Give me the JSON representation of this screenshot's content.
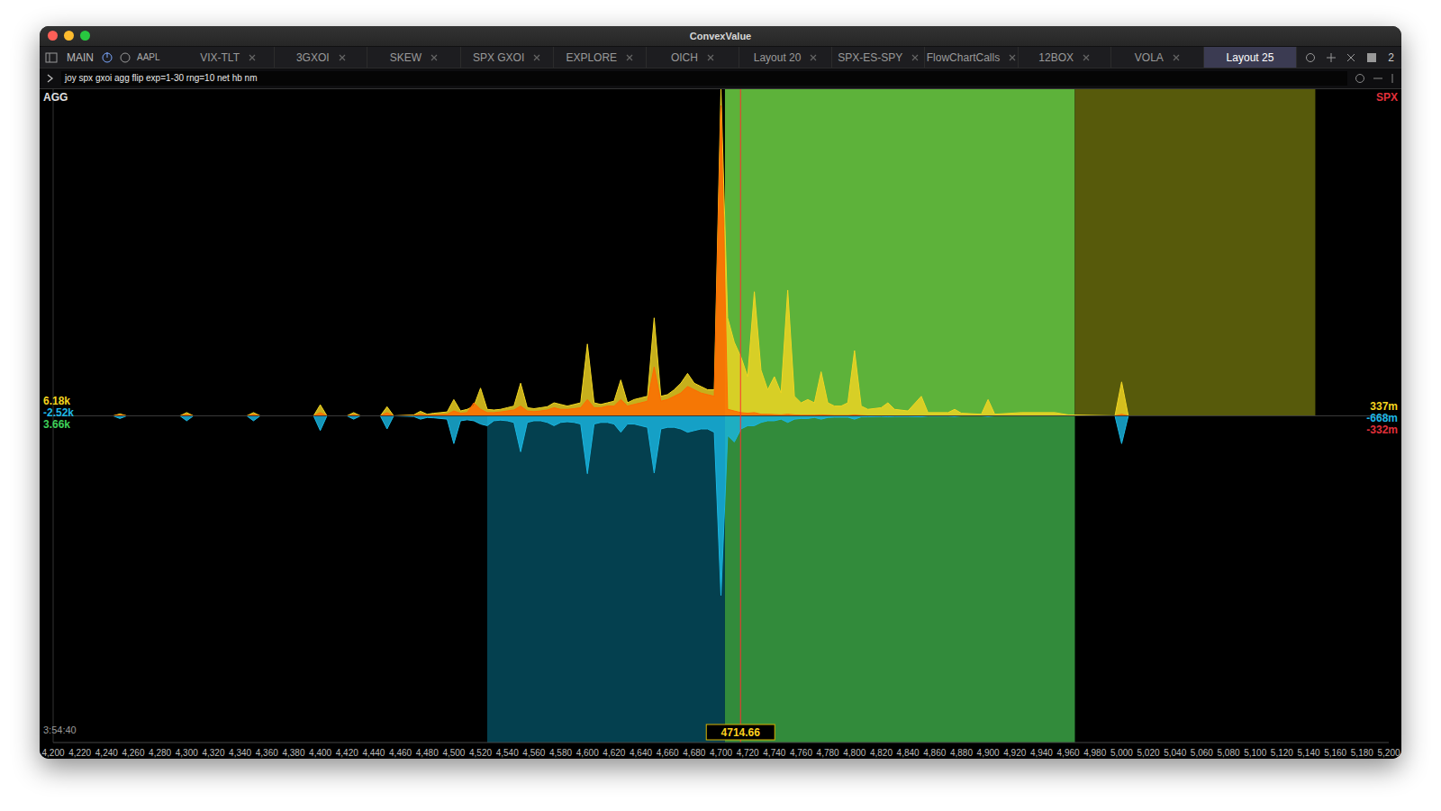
{
  "window": {
    "title": "ConvexValue"
  },
  "toolbar": {
    "items": [
      "MAIN",
      "AAPL"
    ],
    "tabs": [
      "VIX-TLT",
      "3GXOI",
      "SKEW",
      "SPX GXOI",
      "EXPLORE",
      "OICH",
      "Layout 20",
      "SPX-ES-SPY",
      "FlowChartCalls",
      "12BOX",
      "VOLA",
      "Layout 25"
    ],
    "active_tab": "Layout 25",
    "badge": "2"
  },
  "command": "joy spx gxoi agg flip exp=1-30 rng=10 net hb nm",
  "chart_data": {
    "type": "area",
    "title": "AGG",
    "subtitle": "SPX",
    "time": "3:54:40",
    "spot": 4714.66,
    "spot_color": "#ff3030",
    "left_stats": [
      {
        "label": "6.18k",
        "color": "#f5d51f"
      },
      {
        "label": "-2.52k",
        "color": "#1fb8e6"
      },
      {
        "label": "3.66k",
        "color": "#3fd15a"
      }
    ],
    "right_stats": [
      {
        "label": "337m",
        "color": "#f5d51f"
      },
      {
        "label": "-668m",
        "color": "#1fb8e6"
      },
      {
        "label": "-332m",
        "color": "#e0303a"
      }
    ],
    "grid": false,
    "stacked": false,
    "tick_labels": "x",
    "xlim": [
      4200,
      5200
    ],
    "ylim": [
      -100,
      100
    ],
    "xticks": [
      {
        "value": 4200,
        "label": "4,200"
      },
      {
        "value": 4220,
        "label": "4,220"
      },
      {
        "value": 4240,
        "label": "4,240"
      },
      {
        "value": 4260,
        "label": "4,260"
      },
      {
        "value": 4280,
        "label": "4,280"
      },
      {
        "value": 4300,
        "label": "4,300"
      },
      {
        "value": 4320,
        "label": "4,320"
      },
      {
        "value": 4340,
        "label": "4,340"
      },
      {
        "value": 4360,
        "label": "4,360"
      },
      {
        "value": 4380,
        "label": "4,380"
      },
      {
        "value": 4400,
        "label": "4,400"
      },
      {
        "value": 4420,
        "label": "4,420"
      },
      {
        "value": 4440,
        "label": "4,440"
      },
      {
        "value": 4460,
        "label": "4,460"
      },
      {
        "value": 4480,
        "label": "4,480"
      },
      {
        "value": 4500,
        "label": "4,500"
      },
      {
        "value": 4520,
        "label": "4,520"
      },
      {
        "value": 4540,
        "label": "4,540"
      },
      {
        "value": 4560,
        "label": "4,560"
      },
      {
        "value": 4580,
        "label": "4,580"
      },
      {
        "value": 4600,
        "label": "4,600"
      },
      {
        "value": 4620,
        "label": "4,620"
      },
      {
        "value": 4640,
        "label": "4,640"
      },
      {
        "value": 4660,
        "label": "4,660"
      },
      {
        "value": 4680,
        "label": "4,680"
      },
      {
        "value": 4700,
        "label": "4,700"
      },
      {
        "value": 4720,
        "label": "4,720"
      },
      {
        "value": 4740,
        "label": "4,740"
      },
      {
        "value": 4760,
        "label": "4,760"
      },
      {
        "value": 4780,
        "label": "4,780"
      },
      {
        "value": 4800,
        "label": "4,800"
      },
      {
        "value": 4820,
        "label": "4,820"
      },
      {
        "value": 4840,
        "label": "4,840"
      },
      {
        "value": 4860,
        "label": "4,860"
      },
      {
        "value": 4880,
        "label": "4,880"
      },
      {
        "value": 4900,
        "label": "4,900"
      },
      {
        "value": 4920,
        "label": "4,920"
      },
      {
        "value": 4940,
        "label": "4,940"
      },
      {
        "value": 4960,
        "label": "4,960"
      },
      {
        "value": 4980,
        "label": "4,980"
      },
      {
        "value": 5000,
        "label": "5,000"
      },
      {
        "value": 5020,
        "label": "5,020"
      },
      {
        "value": 5040,
        "label": "5,040"
      },
      {
        "value": 5060,
        "label": "5,060"
      },
      {
        "value": 5080,
        "label": "5,080"
      },
      {
        "value": 5100,
        "label": "5,100"
      },
      {
        "value": 5120,
        "label": "5,120"
      },
      {
        "value": 5140,
        "label": "5,140"
      },
      {
        "value": 5160,
        "label": "5,160"
      },
      {
        "value": 5180,
        "label": "5,180"
      },
      {
        "value": 5200,
        "label": "5,200"
      }
    ],
    "zones": [
      {
        "x1": 4525,
        "x2": 4703,
        "y1": -100,
        "y2": 0,
        "color": "#04404f"
      },
      {
        "x1": 4703,
        "x2": 4965,
        "y1": 0,
        "y2": 100,
        "color": "#5db23a"
      },
      {
        "x1": 4703,
        "x2": 4965,
        "y1": -100,
        "y2": 0,
        "color": "#328b3b"
      },
      {
        "x1": 4965,
        "x2": 5145,
        "y1": 0,
        "y2": 100,
        "color": "#575a0b"
      }
    ],
    "x": [
      4210,
      4245,
      4250,
      4255,
      4295,
      4300,
      4305,
      4345,
      4350,
      4355,
      4395,
      4400,
      4405,
      4420,
      4425,
      4430,
      4445,
      4450,
      4455,
      4470,
      4475,
      4480,
      4485,
      4490,
      4495,
      4500,
      4505,
      4510,
      4515,
      4520,
      4525,
      4530,
      4535,
      4540,
      4545,
      4550,
      4555,
      4560,
      4565,
      4570,
      4575,
      4580,
      4585,
      4590,
      4595,
      4600,
      4605,
      4610,
      4615,
      4620,
      4625,
      4630,
      4635,
      4640,
      4645,
      4650,
      4655,
      4660,
      4665,
      4670,
      4675,
      4680,
      4685,
      4690,
      4695,
      4700,
      4705,
      4710,
      4715,
      4720,
      4725,
      4730,
      4735,
      4740,
      4745,
      4750,
      4755,
      4760,
      4765,
      4770,
      4775,
      4780,
      4785,
      4790,
      4795,
      4800,
      4805,
      4810,
      4820,
      4825,
      4830,
      4840,
      4850,
      4855,
      4870,
      4875,
      4880,
      4895,
      4900,
      4905,
      4925,
      4950,
      4960,
      4995,
      5000,
      5005,
      5190
    ],
    "series": [
      {
        "color": "#f2d622",
        "values": [
          0,
          0,
          0.6,
          0,
          0,
          1,
          0,
          0,
          1,
          0,
          0,
          3.4,
          0,
          0,
          1,
          0,
          0,
          2.8,
          0,
          0.3,
          1.4,
          0.5,
          0.8,
          1,
          1.2,
          5,
          1.5,
          2,
          3,
          8.5,
          2,
          1.8,
          2,
          2.5,
          3,
          10,
          2.5,
          2.2,
          2.5,
          2.8,
          4,
          3.5,
          3,
          3.5,
          4,
          22,
          4,
          3.5,
          4,
          4.5,
          11,
          4,
          5,
          5.5,
          6,
          30,
          6,
          6.5,
          8,
          10,
          13,
          10,
          9,
          8,
          8,
          100,
          30,
          22.5,
          18,
          12,
          38,
          14,
          8,
          12,
          7,
          38.5,
          6,
          4,
          5,
          4,
          13.5,
          4,
          3,
          3,
          4,
          20,
          3,
          2,
          2.5,
          4,
          2,
          1.5,
          6,
          1,
          1,
          2,
          0.8,
          0.5,
          5,
          0.5,
          1,
          1,
          0.3,
          0,
          10.4,
          0,
          0
        ]
      },
      {
        "color": "#ff6a00",
        "values": [
          0,
          0,
          0.3,
          0,
          0,
          0.4,
          0,
          0,
          0.4,
          0,
          0,
          1,
          0,
          0,
          0.3,
          0,
          0,
          1,
          0,
          0.1,
          0.5,
          0.2,
          0.3,
          0.4,
          0.5,
          1.5,
          0.8,
          1,
          4,
          2,
          1,
          1,
          1.2,
          1.5,
          1.8,
          3,
          1.5,
          1.3,
          1.5,
          1.8,
          2.5,
          2,
          2,
          2.2,
          2.5,
          5,
          2.5,
          2.5,
          3,
          3,
          5,
          3,
          3.5,
          4,
          4.5,
          15,
          4.5,
          5,
          6,
          7,
          9,
          8,
          7,
          6.5,
          6,
          95,
          2,
          1.5,
          1,
          0.8,
          1,
          0.5,
          0.5,
          0.4,
          0.3,
          0.5,
          0.3,
          0.2,
          0.2,
          0.2,
          0.3,
          0.2,
          0.1,
          0.1,
          0.1,
          0.3,
          0.1,
          0,
          0,
          0,
          0,
          0,
          0,
          0,
          0,
          0,
          0,
          0,
          0,
          0,
          0,
          0,
          0,
          0,
          0.5,
          0,
          0
        ]
      },
      {
        "color": "#1ab6e0",
        "values": [
          0,
          0,
          -0.8,
          0,
          0,
          -1.5,
          0,
          0,
          -1.5,
          0,
          0,
          -4.5,
          0,
          0,
          -1,
          0,
          0,
          -4,
          0,
          -0.2,
          -1,
          -0.5,
          -0.6,
          -0.8,
          -1,
          -8.5,
          -1.5,
          -1.2,
          -1.5,
          -2.5,
          -3,
          -1.5,
          -1.3,
          -1.5,
          -2,
          -11,
          -2,
          -1.5,
          -1.5,
          -2,
          -3,
          -2,
          -1.8,
          -2,
          -2.5,
          -17.7,
          -2.5,
          -2,
          -2,
          -2.5,
          -5,
          -2.5,
          -2.5,
          -3,
          -3.5,
          -17.5,
          -4,
          -3.5,
          -3.5,
          -4,
          -5,
          -4.5,
          -4,
          -4,
          -5,
          -55,
          -6,
          -8,
          -4,
          -3,
          -3,
          -2,
          -1.5,
          -1.5,
          -1,
          -2,
          -1,
          -0.8,
          -0.8,
          -0.5,
          -1,
          -0.5,
          -0.4,
          -0.4,
          -0.4,
          -1,
          -0.3,
          -0.3,
          -0.2,
          -0.3,
          -0.2,
          -0.2,
          -0.3,
          -0.1,
          -0.1,
          -0.2,
          0,
          0,
          -0.2,
          0,
          0,
          0,
          0,
          0,
          -8.5,
          0,
          0
        ]
      }
    ]
  }
}
